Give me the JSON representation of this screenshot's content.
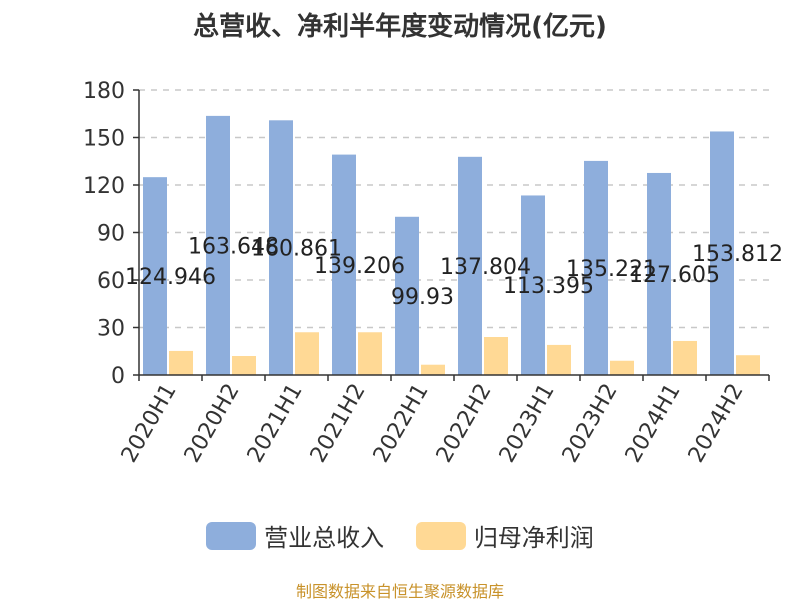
{
  "chart_data": {
    "type": "bar",
    "title": "总营收、净利半年度变动情况(亿元)",
    "categories": [
      "2020H1",
      "2020H2",
      "2021H1",
      "2021H2",
      "2022H1",
      "2022H2",
      "2023H1",
      "2023H2",
      "2024H1",
      "2024H2"
    ],
    "series": [
      {
        "name": "营业总收入",
        "values": [
          124.946,
          163.648,
          160.861,
          139.206,
          99.93,
          137.804,
          113.395,
          135.221,
          127.605,
          153.812
        ],
        "labels": [
          "124.946",
          "163.648",
          "160.861",
          "139.206",
          "99.93",
          "137.804",
          "113.395",
          "135.221",
          "127.605",
          "153.812"
        ],
        "color": "#8eaedc"
      },
      {
        "name": "归母净利润",
        "values": [
          15.2,
          12.0,
          27.0,
          27.0,
          6.5,
          24.0,
          19.0,
          9.0,
          21.5,
          12.5
        ],
        "color": "#ffd995"
      }
    ],
    "yticks": [
      "0",
      "30",
      "60",
      "90",
      "120",
      "150",
      "180"
    ],
    "ylim": [
      0,
      180
    ],
    "grid": true,
    "legend_position": "bottom"
  },
  "footer": "制图数据来自恒生聚源数据库"
}
